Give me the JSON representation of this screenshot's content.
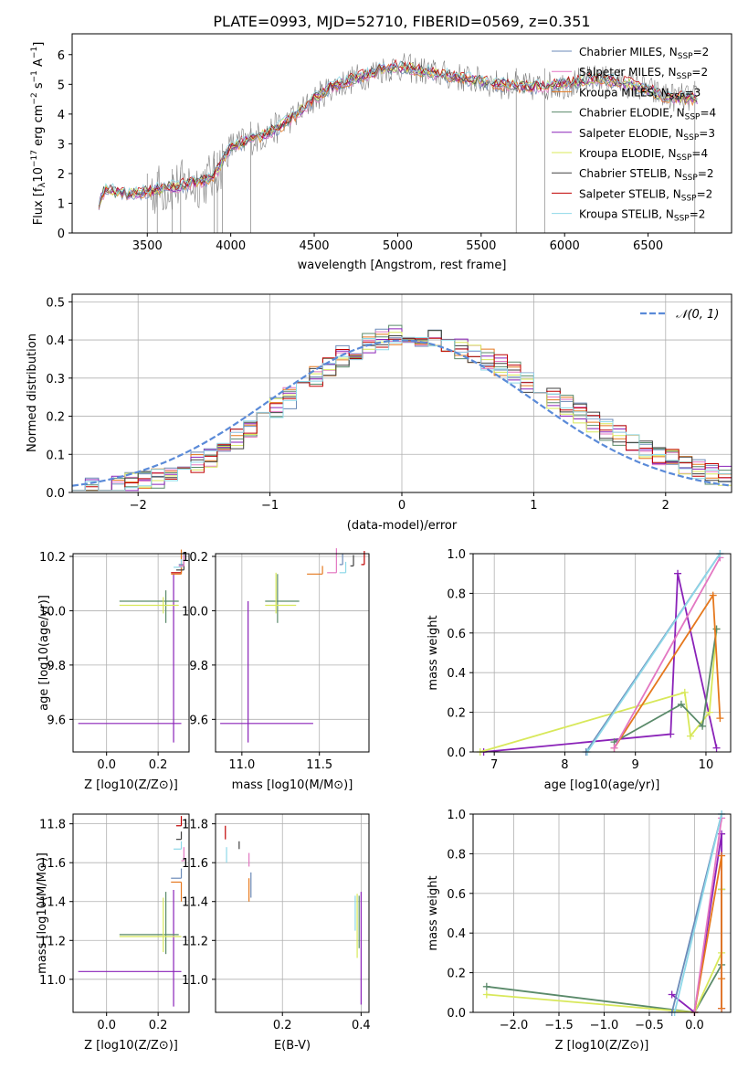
{
  "colors": {
    "Chabrier MILES": "#6b8ab8",
    "Salpeter MILES": "#e377c2",
    "Kroupa MILES": "#e5781e",
    "Chabrier ELODIE": "#5a8a6a",
    "Salpeter ELODIE": "#8a22b8",
    "Kroupa ELODIE": "#d8e85a",
    "Chabrier STELIB": "#404040",
    "Salpeter STELIB": "#c00000",
    "Kroupa STELIB": "#8ed8e8",
    "normal": "#5a8ad8",
    "observed": "#808080"
  },
  "chart_data": [
    {
      "type": "line",
      "id": "spectrum",
      "title": "PLATE=0993, MJD=52710, FIBERID=0569, z=0.351",
      "xlabel": "wavelength [Angstrom, rest frame]",
      "ylabel": "Flux [f_λ 10^-17 erg cm^-2 s^-1 A^-1]",
      "xlim": [
        3050,
        7000
      ],
      "ylim": [
        0,
        6.7
      ],
      "xticks": [
        3500,
        4000,
        4500,
        5000,
        5500,
        6000,
        6500
      ],
      "yticks": [
        0,
        1,
        2,
        3,
        4,
        5,
        6
      ],
      "continuum_x": [
        3200,
        3250,
        3300,
        3400,
        3500,
        3600,
        3700,
        3800,
        3900,
        4000,
        4100,
        4200,
        4300,
        4400,
        4500,
        4600,
        4700,
        4800,
        4900,
        5000,
        5200,
        5400,
        5600,
        5800,
        6000,
        6200,
        6400,
        6600,
        6800
      ],
      "continuum_y": [
        0.9,
        1.5,
        1.4,
        1.3,
        1.4,
        1.5,
        1.6,
        1.7,
        1.9,
        2.9,
        3.1,
        3.3,
        3.6,
        4.0,
        4.5,
        4.9,
        5.1,
        5.3,
        5.5,
        5.6,
        5.4,
        5.2,
        5.0,
        4.9,
        5.0,
        5.2,
        5.0,
        4.6,
        4.5
      ],
      "legend": [
        {
          "label": "Chabrier MILES, N",
          "sub": "SSP",
          "suffix": "=2"
        },
        {
          "label": "Salpeter MILES, N",
          "sub": "SSP",
          "suffix": "=2"
        },
        {
          "label": "Kroupa MILES, N",
          "sub": "SSP",
          "suffix": "=3"
        },
        {
          "label": "Chabrier ELODIE, N",
          "sub": "SSP",
          "suffix": "=4"
        },
        {
          "label": "Salpeter ELODIE, N",
          "sub": "SSP",
          "suffix": "=3"
        },
        {
          "label": "Kroupa ELODIE, N",
          "sub": "SSP",
          "suffix": "=4"
        },
        {
          "label": "Chabrier STELIB, N",
          "sub": "SSP",
          "suffix": "=2"
        },
        {
          "label": "Salpeter STELIB, N",
          "sub": "SSP",
          "suffix": "=2"
        },
        {
          "label": "Kroupa STELIB, N",
          "sub": "SSP",
          "suffix": "=2"
        }
      ],
      "legend_loc": "upper right"
    },
    {
      "type": "histogram",
      "id": "residuals",
      "xlabel": "(data-model)/error",
      "ylabel": "Normed distribution",
      "xlim": [
        -2.5,
        2.5
      ],
      "ylim": [
        0,
        0.52
      ],
      "xticks": [
        -2,
        -1,
        0,
        1,
        2
      ],
      "yticks": [
        0.0,
        0.1,
        0.2,
        0.3,
        0.4,
        0.5
      ],
      "legend": "𝒩(0, 1)",
      "legend_loc": "upper right",
      "grid": true
    },
    {
      "type": "errorbar",
      "id": "age_vs_Z",
      "xlabel": "Z [log10(Z/Z⊙)]",
      "ylabel": "age  [log10(age/yr)]",
      "xlim": [
        -0.13,
        0.32
      ],
      "ylim": [
        9.48,
        10.21
      ],
      "xticks": [
        0.0,
        0.2
      ],
      "yticks": [
        9.6,
        9.8,
        10.0,
        10.2
      ],
      "points": [
        {
          "model": "Salpeter ELODIE",
          "x": 0.26,
          "y": 9.585,
          "xerr": [
            0.37,
            0.03
          ],
          "yerr": [
            0.07,
            0.55
          ]
        },
        {
          "model": "Chabrier ELODIE",
          "x": 0.23,
          "y": 10.035,
          "xerr": [
            0.18,
            0.05
          ],
          "yerr": [
            0.08,
            0.04
          ]
        },
        {
          "model": "Kroupa ELODIE",
          "x": 0.22,
          "y": 10.02,
          "xerr": [
            0.17,
            0.06
          ],
          "yerr": [
            0.03,
            0.03
          ]
        },
        {
          "model": "Salpeter STELIB",
          "x": 0.29,
          "y": 10.14,
          "xerr": [
            0.04,
            0.0
          ],
          "yerr": [
            0.0,
            0.03
          ]
        },
        {
          "model": "Kroupa MILES",
          "x": 0.29,
          "y": 10.135,
          "xerr": [
            0.04,
            0.0
          ],
          "yerr": [
            0.0,
            0.09
          ]
        },
        {
          "model": "Chabrier STELIB",
          "x": 0.3,
          "y": 10.15,
          "xerr": [
            0.03,
            0.0
          ],
          "yerr": [
            0.0,
            0.03
          ]
        },
        {
          "model": "Kroupa STELIB",
          "x": 0.29,
          "y": 10.16,
          "xerr": [
            0.03,
            0.0
          ],
          "yerr": [
            0.0,
            0.03
          ]
        },
        {
          "model": "Chabrier MILES",
          "x": 0.3,
          "y": 10.17,
          "xerr": [
            0.02,
            0.0
          ],
          "yerr": [
            0.0,
            0.04
          ]
        },
        {
          "model": "Salpeter MILES",
          "x": 0.3,
          "y": 10.165,
          "xerr": [
            0.02,
            0.0
          ],
          "yerr": [
            0.0,
            0.04
          ]
        }
      ]
    },
    {
      "type": "errorbar",
      "id": "age_vs_mass",
      "xlabel": "mass [log10(M/M⊙)]",
      "ylabel": "",
      "xlim": [
        10.83,
        11.82
      ],
      "ylim": [
        9.48,
        10.21
      ],
      "xticks": [
        11.0,
        11.5
      ],
      "yticks": [
        9.6,
        9.8,
        10.0,
        10.2
      ],
      "points": [
        {
          "model": "Salpeter ELODIE",
          "x": 11.04,
          "y": 9.585,
          "xerr": [
            0.18,
            0.42
          ],
          "yerr": [
            0.07,
            0.45
          ]
        },
        {
          "model": "Chabrier ELODIE",
          "x": 11.23,
          "y": 10.035,
          "xerr": [
            0.08,
            0.14
          ],
          "yerr": [
            0.08,
            0.1
          ]
        },
        {
          "model": "Kroupa ELODIE",
          "x": 11.22,
          "y": 10.02,
          "xerr": [
            0.07,
            0.13
          ],
          "yerr": [
            0.03,
            0.12
          ]
        },
        {
          "model": "Kroupa MILES",
          "x": 11.52,
          "y": 10.135,
          "xerr": [
            0.1,
            0.0
          ],
          "yerr": [
            0.0,
            0.03
          ]
        },
        {
          "model": "Salpeter MILES",
          "x": 11.61,
          "y": 10.14,
          "xerr": [
            0.06,
            0.0
          ],
          "yerr": [
            0.0,
            0.09
          ]
        },
        {
          "model": "Kroupa STELIB",
          "x": 11.67,
          "y": 10.14,
          "xerr": [
            0.04,
            0.0
          ],
          "yerr": [
            0.0,
            0.04
          ]
        },
        {
          "model": "Chabrier MILES",
          "x": 11.65,
          "y": 10.17,
          "xerr": [
            0.02,
            0.0
          ],
          "yerr": [
            0.0,
            0.04
          ]
        },
        {
          "model": "Chabrier STELIB",
          "x": 11.72,
          "y": 10.165,
          "xerr": [
            0.02,
            0.0
          ],
          "yerr": [
            0.0,
            0.04
          ]
        },
        {
          "model": "Salpeter STELIB",
          "x": 11.79,
          "y": 10.17,
          "xerr": [
            0.02,
            0.0
          ],
          "yerr": [
            0.0,
            0.05
          ]
        }
      ]
    },
    {
      "type": "line",
      "id": "weight_vs_age",
      "xlabel": "age  [log10(age/yr)]",
      "ylabel": "mass weight",
      "xlim": [
        6.7,
        10.35
      ],
      "ylim": [
        0,
        1
      ],
      "xticks": [
        7,
        8,
        9,
        10
      ],
      "yticks": [
        0.0,
        0.2,
        0.4,
        0.6,
        0.8,
        1.0
      ],
      "grid": true,
      "series": [
        {
          "model": "Salpeter ELODIE",
          "x": [
            6.85,
            9.5,
            9.6,
            10.15
          ],
          "y": [
            0.0,
            0.09,
            0.9,
            0.02
          ]
        },
        {
          "model": "Kroupa ELODIE",
          "x": [
            6.8,
            9.7,
            9.78,
            10.05,
            10.15
          ],
          "y": [
            0.0,
            0.3,
            0.08,
            0.2,
            0.62
          ]
        },
        {
          "model": "Chabrier ELODIE",
          "x": [
            8.7,
            9.65,
            9.95,
            10.15
          ],
          "y": [
            0.05,
            0.24,
            0.13,
            0.62
          ]
        },
        {
          "model": "Kroupa MILES",
          "x": [
            8.7,
            10.1,
            10.2
          ],
          "y": [
            0.02,
            0.79,
            0.17
          ]
        },
        {
          "model": "Salpeter MILES",
          "x": [
            8.7,
            10.2
          ],
          "y": [
            0.02,
            0.98
          ]
        },
        {
          "model": "Chabrier MILES",
          "x": [
            8.3,
            10.2
          ],
          "y": [
            0.0,
            1.0
          ]
        },
        {
          "model": "Kroupa STELIB",
          "x": [
            8.32,
            10.2
          ],
          "y": [
            0.0,
            1.0
          ]
        }
      ]
    },
    {
      "type": "errorbar",
      "id": "mass_vs_Z",
      "xlabel": "Z [log10(Z/Z⊙)]",
      "ylabel": "mass [log10(M/M⊙)]",
      "xlim": [
        -0.13,
        0.32
      ],
      "ylim": [
        10.83,
        11.85
      ],
      "xticks": [
        0.0,
        0.2
      ],
      "yticks": [
        11.0,
        11.2,
        11.4,
        11.6,
        11.8
      ],
      "points": [
        {
          "model": "Salpeter ELODIE",
          "x": 0.26,
          "y": 11.04,
          "xerr": [
            0.37,
            0.03
          ],
          "yerr": [
            0.18,
            0.42
          ]
        },
        {
          "model": "Chabrier ELODIE",
          "x": 0.23,
          "y": 11.23,
          "xerr": [
            0.18,
            0.05
          ],
          "yerr": [
            0.1,
            0.22
          ]
        },
        {
          "model": "Kroupa ELODIE",
          "x": 0.22,
          "y": 11.22,
          "xerr": [
            0.17,
            0.07
          ],
          "yerr": [
            0.08,
            0.2
          ]
        },
        {
          "model": "Chabrier MILES",
          "x": 0.29,
          "y": 11.52,
          "xerr": [
            0.04,
            0.0
          ],
          "yerr": [
            0.0,
            0.05
          ]
        },
        {
          "model": "Kroupa MILES",
          "x": 0.29,
          "y": 11.5,
          "xerr": [
            0.04,
            0.0
          ],
          "yerr": [
            0.1,
            0.0
          ]
        },
        {
          "model": "Kroupa STELIB",
          "x": 0.29,
          "y": 11.67,
          "xerr": [
            0.03,
            0.0
          ],
          "yerr": [
            0.0,
            0.04
          ]
        },
        {
          "model": "Chabrier STELIB",
          "x": 0.29,
          "y": 11.72,
          "xerr": [
            0.02,
            0.0
          ],
          "yerr": [
            0.0,
            0.04
          ]
        },
        {
          "model": "Salpeter STELIB",
          "x": 0.29,
          "y": 11.79,
          "xerr": [
            0.02,
            0.0
          ],
          "yerr": [
            0.0,
            0.05
          ]
        },
        {
          "model": "Salpeter MILES",
          "x": 0.3,
          "y": 11.61,
          "xerr": [
            0.01,
            0.0
          ],
          "yerr": [
            0.0,
            0.07
          ]
        }
      ]
    },
    {
      "type": "errorbar",
      "id": "mass_vs_ebv",
      "xlabel": "E(B-V)",
      "ylabel": "",
      "xlim": [
        0.03,
        0.42
      ],
      "ylim": [
        10.83,
        11.85
      ],
      "xticks": [
        0.2,
        0.4
      ],
      "yticks": [
        11.0,
        11.2,
        11.4,
        11.6,
        11.8
      ],
      "points": [
        {
          "model": "Salpeter STELIB",
          "x": 0.055,
          "y": 11.72,
          "yerr": [
            0.0,
            0.07
          ]
        },
        {
          "model": "Kroupa STELIB",
          "x": 0.058,
          "y": 11.64,
          "yerr": [
            0.04,
            0.04
          ]
        },
        {
          "model": "Chabrier STELIB",
          "x": 0.09,
          "y": 11.67,
          "yerr": [
            0.0,
            0.04
          ]
        },
        {
          "model": "Salpeter MILES",
          "x": 0.115,
          "y": 11.58,
          "yerr": [
            0.0,
            0.07
          ]
        },
        {
          "model": "Kroupa MILES",
          "x": 0.115,
          "y": 11.47,
          "yerr": [
            0.07,
            0.05
          ]
        },
        {
          "model": "Chabrier MILES",
          "x": 0.12,
          "y": 11.49,
          "yerr": [
            0.07,
            0.06
          ]
        },
        {
          "model": "Salpeter ELODIE",
          "x": 0.4,
          "y": 11.1,
          "yerr": [
            0.23,
            0.35
          ]
        },
        {
          "model": "Chabrier ELODIE",
          "x": 0.395,
          "y": 11.28,
          "yerr": [
            0.12,
            0.15
          ]
        },
        {
          "model": "Kroupa ELODIE",
          "x": 0.39,
          "y": 11.28,
          "yerr": [
            0.17,
            0.16
          ]
        },
        {
          "model": "Kroupa STELIB",
          "x": 0.385,
          "y": 11.35,
          "yerr": [
            0.1,
            0.08
          ]
        }
      ]
    },
    {
      "type": "line",
      "id": "weight_vs_Z",
      "xlabel": "Z [log10(Z/Z⊙)]",
      "ylabel": "mass weight",
      "xlim": [
        -2.45,
        0.4
      ],
      "ylim": [
        0,
        1
      ],
      "xticks": [
        -2.0,
        -1.5,
        -1.0,
        -0.5,
        0.0
      ],
      "yticks": [
        0.0,
        0.2,
        0.4,
        0.6,
        0.8,
        1.0
      ],
      "grid": true,
      "series": [
        {
          "model": "Chabrier ELODIE",
          "x": [
            -2.3,
            0.0,
            0.3,
            0.3
          ],
          "y": [
            0.13,
            0.0,
            0.24,
            0.62
          ]
        },
        {
          "model": "Kroupa ELODIE",
          "x": [
            -2.3,
            0.0,
            0.3,
            0.3
          ],
          "y": [
            0.09,
            0.0,
            0.3,
            0.62
          ]
        },
        {
          "model": "Salpeter ELODIE",
          "x": [
            -0.25,
            0.0,
            0.3,
            0.3
          ],
          "y": [
            0.09,
            0.0,
            0.9,
            0.02
          ]
        },
        {
          "model": "Kroupa MILES",
          "x": [
            0.0,
            0.3,
            0.3,
            0.3
          ],
          "y": [
            0.0,
            0.79,
            0.17,
            0.02
          ]
        },
        {
          "model": "Salpeter MILES",
          "x": [
            0.0,
            0.3
          ],
          "y": [
            0.0,
            0.98
          ]
        },
        {
          "model": "Chabrier MILES",
          "x": [
            -0.25,
            0.3
          ],
          "y": [
            0.0,
            1.0
          ]
        },
        {
          "model": "Kroupa STELIB",
          "x": [
            -0.22,
            0.3
          ],
          "y": [
            0.0,
            1.0
          ]
        }
      ]
    }
  ]
}
